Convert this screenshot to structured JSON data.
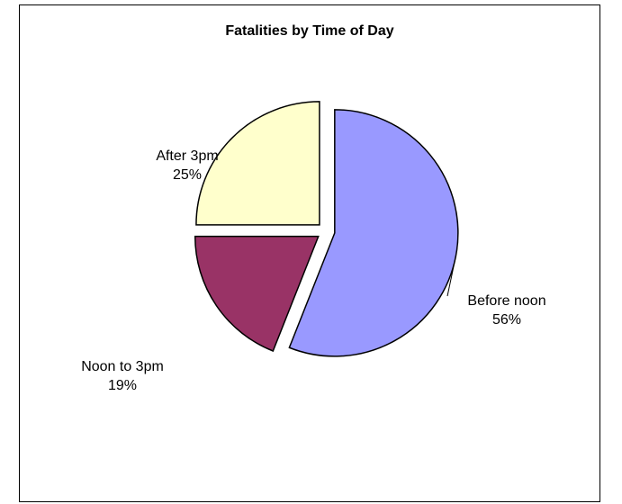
{
  "chart_data": {
    "type": "pie",
    "title": "Fatalities by Time of Day",
    "slices": [
      {
        "label": "Before noon",
        "value": 56,
        "display": "56%",
        "color": "#9999ff",
        "exploded": true
      },
      {
        "label": "Noon to 3pm",
        "value": 19,
        "display": "19%",
        "color": "#993366",
        "exploded": true
      },
      {
        "label": "After 3pm",
        "value": 25,
        "display": "25%",
        "color": "#ffffcc",
        "exploded": true
      }
    ],
    "legend": "none",
    "data_labels": "category name and percentage"
  }
}
